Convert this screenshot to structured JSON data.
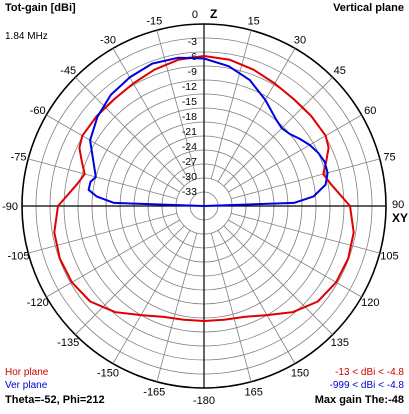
{
  "header": {
    "title": "Tot-gain [dBi]",
    "plane": "Vertical plane",
    "frequency": "1.84 MHz"
  },
  "axes": {
    "top_label": "Z",
    "right_label": "XY"
  },
  "footer": {
    "hor_label": "Hor plane",
    "ver_label": "Ver plane",
    "hor_range": "-13 < dBi < -4.8",
    "ver_range": "-999 < dBi < -4.8",
    "angles": "Theta=-52, Phi=212",
    "max_gain": "Max gain The:-48"
  },
  "colors": {
    "hor": "#e00000",
    "ver": "#0000e0",
    "grid": "#808080"
  },
  "chart_data": {
    "type": "polar",
    "angle_ticks": [
      "0",
      "15",
      "30",
      "45",
      "60",
      "75",
      "90",
      "105",
      "120",
      "135",
      "150",
      "165",
      "-180",
      "-165",
      "-150",
      "-135",
      "-120",
      "-105",
      "-90",
      "-75",
      "-60",
      "-45",
      "-30",
      "-15"
    ],
    "angle_tick_values": [
      0,
      15,
      30,
      45,
      60,
      75,
      90,
      105,
      120,
      135,
      150,
      165,
      180,
      195,
      210,
      225,
      240,
      255,
      270,
      285,
      300,
      315,
      330,
      345
    ],
    "radial_ticks": [
      "-3",
      "-6",
      "-9",
      "-12",
      "-15",
      "-18",
      "-21",
      "-24",
      "-27",
      "-30",
      "-33"
    ],
    "radial_tick_values": [
      -3,
      -6,
      -9,
      -12,
      -15,
      -18,
      -21,
      -24,
      -27,
      -30,
      -33
    ],
    "r_range_dbi": [
      -36,
      0
    ],
    "series": [
      {
        "name": "Hor plane",
        "angles": [
          0,
          10,
          20,
          30,
          40,
          50,
          60,
          65,
          70,
          75,
          80,
          90,
          100,
          110,
          120,
          130,
          140,
          150,
          160,
          170,
          180,
          190,
          200,
          210,
          220,
          230,
          240,
          250,
          260,
          270,
          280,
          285,
          290,
          295,
          300,
          310,
          320,
          330,
          340,
          350,
          360
        ],
        "dbi": [
          -6.0,
          -6.3,
          -7.0,
          -7.7,
          -8.1,
          -8.0,
          -7.9,
          -8.5,
          -10.0,
          -11.3,
          -10.3,
          -6.8,
          -5.6,
          -5.3,
          -5.5,
          -6.3,
          -8.3,
          -10.8,
          -12.4,
          -12.9,
          -13.0,
          -12.9,
          -12.4,
          -10.8,
          -8.3,
          -6.3,
          -5.5,
          -5.3,
          -5.6,
          -6.8,
          -10.3,
          -11.3,
          -10.0,
          -8.5,
          -7.9,
          -8.0,
          -8.1,
          -7.7,
          -7.0,
          -6.3,
          -6.0
        ]
      },
      {
        "name": "Ver plane",
        "angles": [
          0,
          10,
          20,
          30,
          40,
          45,
          50,
          55,
          60,
          65,
          70,
          75,
          80,
          85,
          88,
          90,
          270,
          272,
          275,
          278,
          282,
          285,
          290,
          300,
          310,
          320,
          330,
          340,
          350,
          360
        ],
        "dbi": [
          -6.5,
          -7.6,
          -9.2,
          -11.5,
          -13.5,
          -14.0,
          -13.6,
          -12.6,
          -11.6,
          -10.8,
          -10.3,
          -10.4,
          -11.3,
          -14.0,
          -18.0,
          -36.0,
          -36.0,
          -18.0,
          -14.5,
          -12.7,
          -12.8,
          -13.6,
          -12.6,
          -9.7,
          -8.2,
          -7.0,
          -6.3,
          -5.7,
          -5.9,
          -6.5
        ]
      }
    ]
  }
}
